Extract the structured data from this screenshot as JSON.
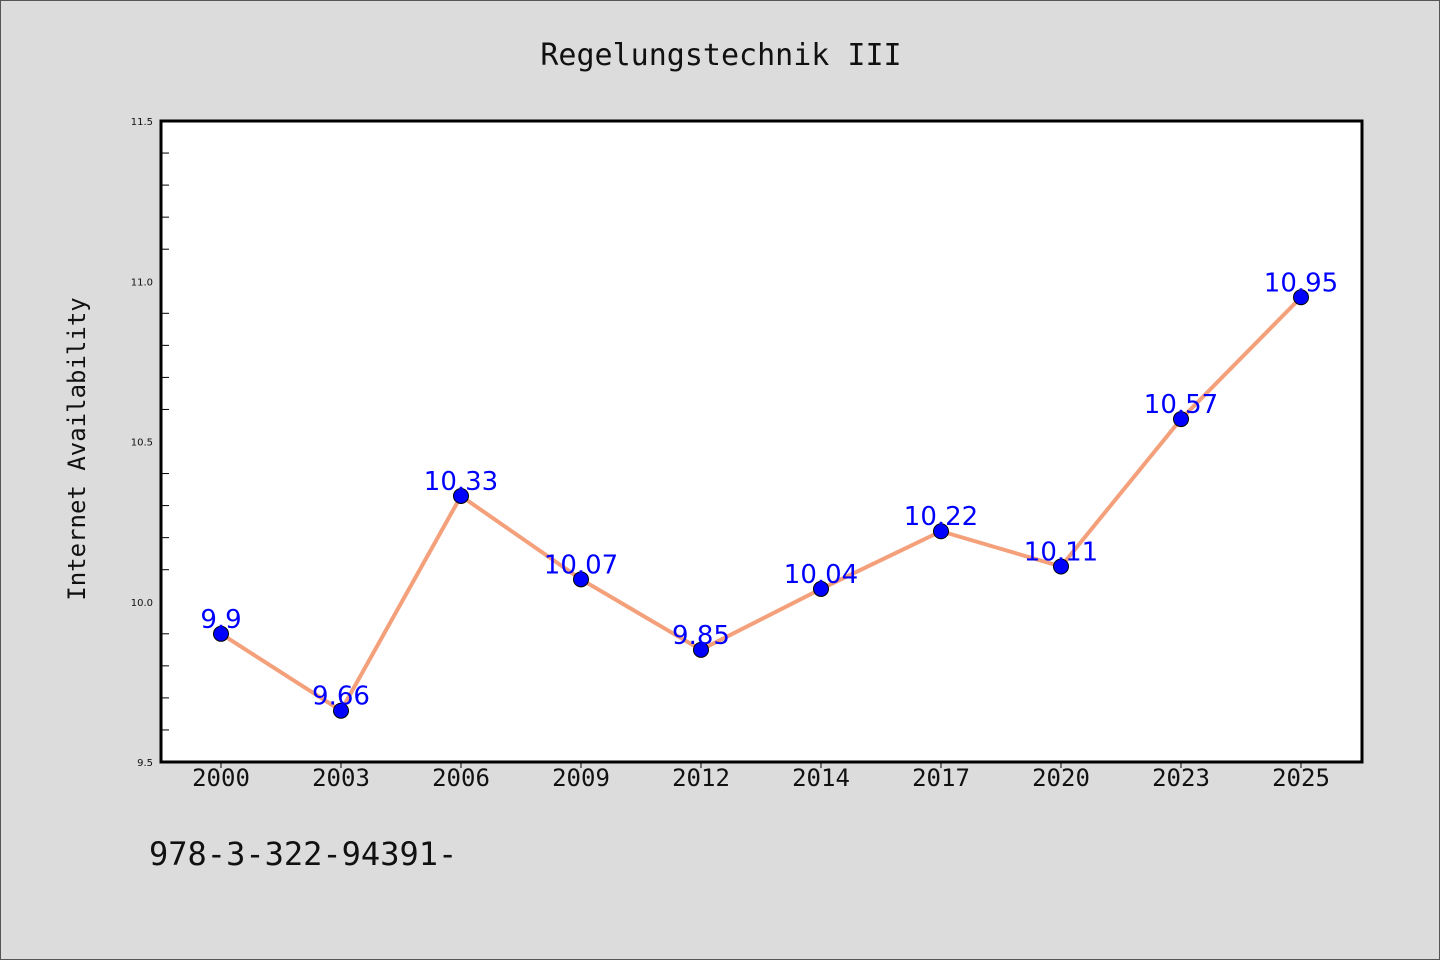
{
  "chart_data": {
    "type": "line",
    "title": "Regelungstechnik III",
    "xlabel": "",
    "ylabel": "Internet Availability",
    "categories": [
      "2000",
      "2003",
      "2006",
      "2009",
      "2012",
      "2014",
      "2017",
      "2020",
      "2023",
      "2025"
    ],
    "series": [
      {
        "values": [
          9.9,
          9.66,
          10.33,
          10.07,
          9.85,
          10.04,
          10.22,
          10.11,
          10.57,
          10.95
        ],
        "data_labels": [
          "9.9",
          "9.66",
          "10.33",
          "10.07",
          "9.85",
          "10.04",
          "10.22",
          "10.11",
          "10.57",
          "10.95"
        ]
      }
    ],
    "ylim": [
      9.5,
      11.5
    ],
    "yticks": [
      "9.5",
      "10.0",
      "10.5",
      "11.0",
      "11.5"
    ],
    "grid": false,
    "colors": {
      "line": "#f4a07a",
      "marker": "#0000ff",
      "data_label": "#0000ff",
      "background": "#dcdcdc",
      "plot_background": "#ffffff"
    }
  },
  "footer_text": "978-3-322-94391-"
}
